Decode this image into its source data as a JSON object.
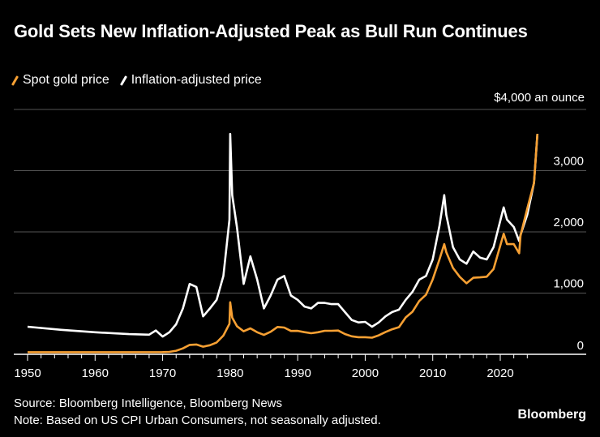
{
  "chart_data": {
    "type": "line",
    "title": "Gold Sets New Inflation-Adjusted Peak as Bull Run Continues",
    "unit_label": "$4,000 an ounce",
    "ylim": [
      0,
      4000
    ],
    "xlim": [
      1950,
      2026
    ],
    "y_ticks": [
      {
        "value": 0,
        "label": "0"
      },
      {
        "value": 1000,
        "label": "1,000"
      },
      {
        "value": 2000,
        "label": "2,000"
      },
      {
        "value": 3000,
        "label": "3,000"
      },
      {
        "value": 4000,
        "label": "$4,000 an ounce"
      }
    ],
    "x_ticks": [
      1950,
      1960,
      1970,
      1980,
      1990,
      2000,
      2010,
      2020
    ],
    "x_tick_labels": [
      "1950",
      "1960",
      "1970",
      "1980",
      "1990",
      "2000",
      "2010",
      "2020"
    ],
    "grid": true,
    "legend_placement": "top-left",
    "series": [
      {
        "name": "Spot gold price",
        "color": "#f7a033",
        "x": [
          1950,
          1955,
          1960,
          1965,
          1970,
          1971,
          1972,
          1973,
          1974,
          1975,
          1976,
          1977,
          1978,
          1979,
          1979.9,
          1980.0,
          1980.3,
          1981,
          1982,
          1983,
          1984,
          1985,
          1986,
          1987,
          1988,
          1989,
          1990,
          1991,
          1992,
          1993,
          1994,
          1995,
          1996,
          1997,
          1998,
          1999,
          2000,
          2001,
          2002,
          2003,
          2004,
          2005,
          2006,
          2007,
          2008,
          2009,
          2010,
          2011,
          2011.7,
          2012,
          2013,
          2014,
          2015,
          2016,
          2017,
          2018,
          2019,
          2020.5,
          2021,
          2022,
          2022.8,
          2023,
          2024,
          2025,
          2025.5
        ],
        "values": [
          35,
          35,
          35,
          35,
          36,
          40,
          58,
          97,
          154,
          160,
          125,
          148,
          193,
          306,
          500,
          850,
          600,
          460,
          376,
          424,
          360,
          317,
          368,
          447,
          437,
          381,
          383,
          362,
          344,
          360,
          384,
          384,
          388,
          331,
          294,
          279,
          279,
          271,
          310,
          363,
          409,
          444,
          603,
          695,
          872,
          972,
          1224,
          1550,
          1800,
          1669,
          1411,
          1266,
          1160,
          1250,
          1257,
          1268,
          1392,
          1970,
          1800,
          1800,
          1650,
          1940,
          2380,
          2800,
          3600
        ]
      },
      {
        "name": "Inflation-adjusted price",
        "color": "#ffffff",
        "x": [
          1950,
          1955,
          1960,
          1965,
          1968,
          1969,
          1970,
          1971,
          1972,
          1973,
          1974,
          1975,
          1976,
          1977,
          1978,
          1979,
          1979.9,
          1980.0,
          1980.3,
          1981,
          1982,
          1983,
          1984,
          1985,
          1986,
          1987,
          1988,
          1989,
          1990,
          1991,
          1992,
          1993,
          1994,
          1995,
          1996,
          1997,
          1998,
          1999,
          2000,
          2001,
          2002,
          2003,
          2004,
          2005,
          2006,
          2007,
          2008,
          2009,
          2010,
          2011,
          2011.7,
          2012,
          2013,
          2014,
          2015,
          2016,
          2017,
          2018,
          2019,
          2020.5,
          2021,
          2022,
          2022.8,
          2023,
          2024,
          2025,
          2025.5
        ],
        "values": [
          450,
          400,
          360,
          330,
          320,
          390,
          290,
          360,
          490,
          750,
          1150,
          1100,
          620,
          750,
          890,
          1280,
          2200,
          3600,
          2600,
          2080,
          1150,
          1600,
          1220,
          750,
          960,
          1220,
          1280,
          960,
          890,
          780,
          750,
          840,
          840,
          820,
          820,
          690,
          560,
          520,
          530,
          450,
          520,
          620,
          690,
          730,
          890,
          1020,
          1220,
          1280,
          1550,
          2100,
          2600,
          2280,
          1750,
          1550,
          1480,
          1680,
          1580,
          1550,
          1750,
          2400,
          2200,
          2080,
          1850,
          1950,
          2280,
          2800,
          3600
        ]
      }
    ]
  },
  "legend": [
    {
      "label": "Spot gold price",
      "color": "#f7a033"
    },
    {
      "label": "Inflation-adjusted price",
      "color": "#ffffff"
    }
  ],
  "footer": {
    "source": "Source: Bloomberg Intelligence, Bloomberg News",
    "note": "Note: Based on US CPI Urban Consumers, not seasonally adjusted.",
    "brand": "Bloomberg"
  }
}
